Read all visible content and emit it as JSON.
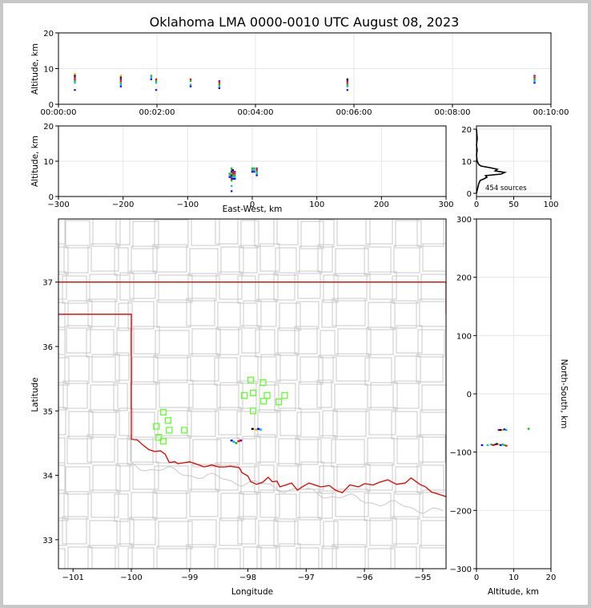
{
  "title": "Oklahoma LMA 0000-0010 UTC August 08, 2023",
  "colors": {
    "grid": "#e6e6e6",
    "axis": "#000000",
    "county": "#c8c8c8",
    "state": "#e00000",
    "station": "#66ff33",
    "source_palette": [
      "#0000ff",
      "#00b0f0",
      "#00c000",
      "#ff0000",
      "#800080",
      "#000000",
      "#ffa500"
    ]
  },
  "chart_data": [
    {
      "id": "time-height",
      "type": "scatter",
      "xlabel": "",
      "ylabel": "Altitude, km",
      "xlim": [
        0,
        600
      ],
      "ylim": [
        0,
        20
      ],
      "xticks": [
        0,
        120,
        240,
        360,
        480,
        600
      ],
      "xtick_labels": [
        "00:00:00",
        "00:02:00",
        "00:04:00",
        "00:06:00",
        "00:08:00",
        "00:10:00"
      ],
      "yticks": [
        0,
        10,
        20
      ],
      "ytick_labels": [
        "0",
        "10",
        "20"
      ],
      "grid": true,
      "points": [
        {
          "t": 20,
          "z": [
            4,
            6,
            6.5,
            7,
            7.5,
            8,
            8.5
          ]
        },
        {
          "t": 76,
          "z": [
            5,
            5.5,
            6,
            6.5,
            7,
            7.5,
            8
          ]
        },
        {
          "t": 113,
          "z": [
            7,
            7.5,
            8
          ]
        },
        {
          "t": 119,
          "z": [
            4,
            6,
            6.5,
            7
          ]
        },
        {
          "t": 161,
          "z": [
            5,
            5.5,
            6.5,
            7
          ]
        },
        {
          "t": 196,
          "z": [
            4.5,
            5,
            5.5,
            6,
            6.5
          ]
        },
        {
          "t": 352,
          "z": [
            4,
            5,
            5.5,
            6,
            6.5,
            7
          ]
        },
        {
          "t": 580,
          "z": [
            6,
            6.5,
            7,
            7.5,
            8
          ]
        }
      ]
    },
    {
      "id": "ew-altitude",
      "type": "scatter",
      "xlabel": "East-West, km",
      "ylabel": "Altitude, km",
      "xlim": [
        -300,
        300
      ],
      "ylim": [
        0,
        20
      ],
      "xticks": [
        -300,
        -200,
        -100,
        0,
        100,
        200,
        300
      ],
      "xtick_labels": [
        "−300",
        "−200",
        "−100",
        "0",
        "100",
        "200",
        "300"
      ],
      "yticks": [
        0,
        10,
        20
      ],
      "ytick_labels": [
        "0",
        "10",
        "20"
      ],
      "grid": true,
      "points": [
        {
          "x": -32,
          "z": [
            1.5,
            3,
            4.5,
            5,
            5.5,
            6,
            6.5,
            7,
            7.5,
            8
          ]
        },
        {
          "x": -30,
          "z": [
            5,
            5.5,
            6,
            6.5,
            7,
            7.5
          ]
        },
        {
          "x": -27,
          "z": [
            5,
            5.5,
            6,
            6.5,
            7
          ]
        },
        {
          "x": -35,
          "z": [
            5.5,
            6,
            6.5
          ]
        },
        {
          "x": 0,
          "z": [
            7,
            7.5,
            8
          ]
        },
        {
          "x": 3,
          "z": [
            7,
            7.5,
            8
          ]
        },
        {
          "x": 7,
          "z": [
            6,
            6.5,
            7,
            7.5,
            8
          ]
        }
      ]
    },
    {
      "id": "altitude-histogram",
      "type": "line",
      "annotation": "454 sources",
      "xlim": [
        0,
        100
      ],
      "ylim": [
        -1,
        21
      ],
      "xticks": [
        0,
        50,
        100
      ],
      "xtick_labels": [
        "0",
        "50",
        "100"
      ],
      "yticks": [
        0,
        10,
        20
      ],
      "ytick_labels": [
        "0",
        "10",
        "20"
      ],
      "grid": true,
      "counts": [
        {
          "z": 0,
          "n": 0
        },
        {
          "z": 1,
          "n": 1
        },
        {
          "z": 2,
          "n": 2
        },
        {
          "z": 3,
          "n": 3
        },
        {
          "z": 4,
          "n": 5
        },
        {
          "z": 4.5,
          "n": 10
        },
        {
          "z": 5,
          "n": 14
        },
        {
          "z": 5.5,
          "n": 12
        },
        {
          "z": 6,
          "n": 33
        },
        {
          "z": 6.5,
          "n": 38
        },
        {
          "z": 7,
          "n": 25
        },
        {
          "z": 7.5,
          "n": 28
        },
        {
          "z": 8,
          "n": 18
        },
        {
          "z": 8.5,
          "n": 6
        },
        {
          "z": 9,
          "n": 3
        },
        {
          "z": 10,
          "n": 1
        },
        {
          "z": 12,
          "n": 0
        },
        {
          "z": 13.5,
          "n": 1
        },
        {
          "z": 15,
          "n": 0
        },
        {
          "z": 17,
          "n": 1
        },
        {
          "z": 20,
          "n": 0
        }
      ]
    },
    {
      "id": "plan-view",
      "type": "scatter",
      "xlabel": "Longitude",
      "ylabel": "Latitude",
      "xlim": [
        -101.25,
        -94.6
      ],
      "ylim": [
        32.55,
        37.98
      ],
      "xticks": [
        -101,
        -100,
        -99,
        -98,
        -97,
        -96,
        -95
      ],
      "xtick_labels": [
        "−101",
        "−100",
        "−99",
        "−98",
        "−97",
        "−96",
        "−95"
      ],
      "yticks": [
        33,
        34,
        35,
        36,
        37
      ],
      "ytick_labels": [
        "33",
        "34",
        "35",
        "36",
        "37"
      ],
      "stations": [
        [
          -97.95,
          35.48
        ],
        [
          -97.74,
          35.44
        ],
        [
          -97.91,
          35.28
        ],
        [
          -98.06,
          35.24
        ],
        [
          -97.67,
          35.24
        ],
        [
          -97.37,
          35.24
        ],
        [
          -97.47,
          35.14
        ],
        [
          -97.73,
          35.15
        ],
        [
          -97.91,
          35.0
        ],
        [
          -99.45,
          34.98
        ],
        [
          -99.37,
          34.85
        ],
        [
          -99.57,
          34.76
        ],
        [
          -99.35,
          34.7
        ],
        [
          -99.09,
          34.7
        ],
        [
          -99.53,
          34.59
        ],
        [
          -99.45,
          34.53
        ]
      ],
      "sources": [
        [
          -98.28,
          34.54
        ],
        [
          -98.24,
          34.52
        ],
        [
          -98.2,
          34.5
        ],
        [
          -98.16,
          34.53
        ],
        [
          -98.12,
          34.54
        ],
        [
          -97.92,
          34.72
        ],
        [
          -97.86,
          34.71
        ],
        [
          -97.82,
          34.72
        ],
        [
          -97.78,
          34.71
        ]
      ]
    },
    {
      "id": "ns-altitude",
      "type": "scatter",
      "xlabel": "Altitude, km",
      "ylabel": "North-South, km",
      "xlim": [
        0,
        20
      ],
      "ylim": [
        -300,
        300
      ],
      "xticks": [
        0,
        10,
        20
      ],
      "xtick_labels": [
        "0",
        "10",
        "20"
      ],
      "yticks": [
        -300,
        -200,
        -100,
        0,
        100,
        200,
        300
      ],
      "ytick_labels": [
        "−300",
        "−200",
        "−100",
        "0",
        "100",
        "200",
        "300"
      ],
      "grid": true,
      "points": [
        {
          "z": 1.5,
          "y": -88
        },
        {
          "z": 3,
          "y": -88
        },
        {
          "z": 4,
          "y": -87
        },
        {
          "z": 4.5,
          "y": -88
        },
        {
          "z": 5,
          "y": -87
        },
        {
          "z": 5.5,
          "y": -86
        },
        {
          "z": 6,
          "y": -87
        },
        {
          "z": 6.5,
          "y": -88
        },
        {
          "z": 7,
          "y": -87
        },
        {
          "z": 7.5,
          "y": -88
        },
        {
          "z": 8,
          "y": -89
        },
        {
          "z": 6,
          "y": -62
        },
        {
          "z": 6.5,
          "y": -62
        },
        {
          "z": 7,
          "y": -62
        },
        {
          "z": 7.5,
          "y": -61
        },
        {
          "z": 8,
          "y": -62
        },
        {
          "z": 14,
          "y": -60
        }
      ]
    }
  ]
}
